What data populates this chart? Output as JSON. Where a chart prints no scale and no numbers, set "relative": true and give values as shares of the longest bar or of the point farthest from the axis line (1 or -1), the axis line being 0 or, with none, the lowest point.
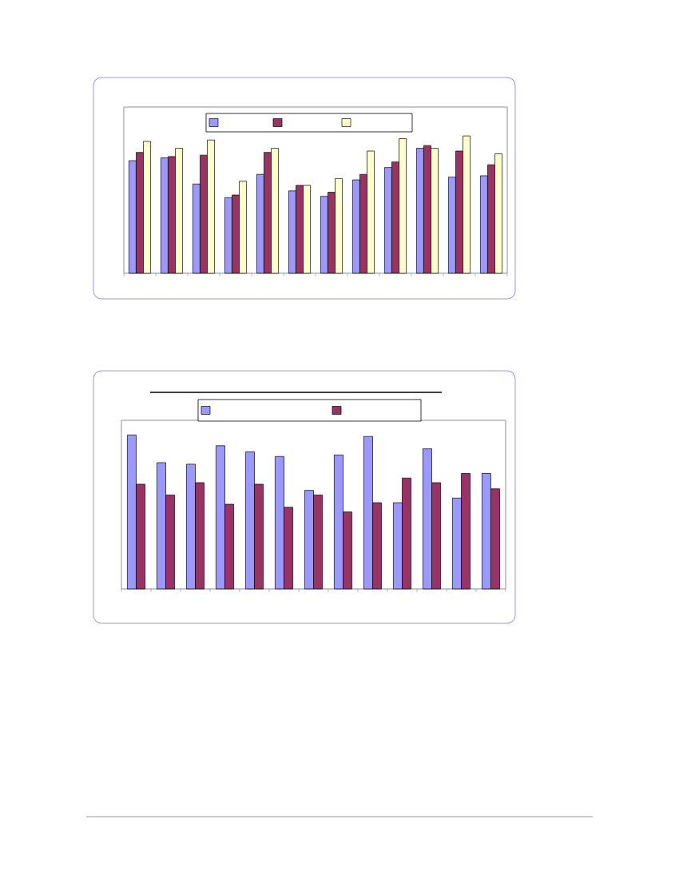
{
  "chart_data": [
    {
      "type": "bar",
      "relative": true,
      "categories": [
        null,
        null,
        null,
        null,
        null,
        null,
        null,
        null,
        null,
        null,
        null,
        null
      ],
      "series": [
        {
          "color": "#9999ff",
          "values": [
            0.82,
            0.84,
            0.65,
            0.55,
            0.72,
            0.6,
            0.56,
            0.68,
            0.77,
            0.91,
            0.7,
            0.71
          ]
        },
        {
          "color": "#993366",
          "values": [
            0.88,
            0.85,
            0.86,
            0.57,
            0.88,
            0.64,
            0.59,
            0.72,
            0.81,
            0.93,
            0.89,
            0.79
          ]
        },
        {
          "color": "#ffffcc",
          "values": [
            0.96,
            0.91,
            0.97,
            0.67,
            0.91,
            0.64,
            0.69,
            0.89,
            0.98,
            0.91,
            1.0,
            0.87
          ]
        }
      ]
    },
    {
      "type": "bar",
      "relative": true,
      "categories": [
        null,
        null,
        null,
        null,
        null,
        null,
        null,
        null,
        null,
        null,
        null,
        null,
        null
      ],
      "series": [
        {
          "color": "#9999ff",
          "values": [
            1.0,
            0.82,
            0.81,
            0.93,
            0.89,
            0.86,
            0.64,
            0.87,
            0.99,
            0.56,
            0.91,
            0.59,
            0.75
          ]
        },
        {
          "color": "#993366",
          "values": [
            0.68,
            0.61,
            0.69,
            0.55,
            0.68,
            0.53,
            0.61,
            0.5,
            0.56,
            0.72,
            0.69,
            0.75,
            0.65
          ]
        }
      ]
    }
  ]
}
